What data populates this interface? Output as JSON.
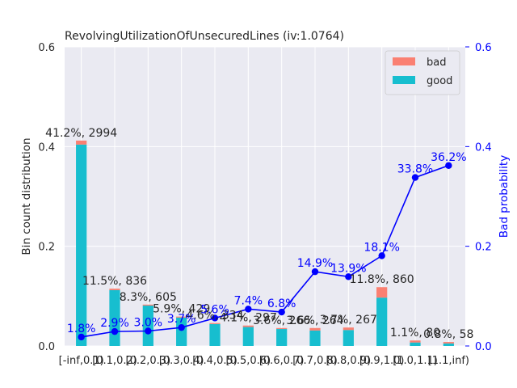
{
  "chart_data": {
    "type": "bar",
    "title": "RevolvingUtilizationOfUnsecuredLines  (iv:1.0764)",
    "ylabel": "Bin count distribution",
    "ylabel_right": "Bad probability",
    "categories": [
      "[-inf,0.1)",
      "[0.1,0.2)",
      "[0.2,0.3)",
      "[0.3,0.4)",
      "[0.4,0.5)",
      "[0.5,0.6)",
      "[0.6,0.7)",
      "[0.7,0.8)",
      "[0.8,0.9)",
      "[0.9,1.0)",
      "[1.0,1.1)",
      "[1.1,inf)"
    ],
    "ylim": [
      0,
      0.6
    ],
    "ylim_right": [
      0,
      0.6
    ],
    "yticks": [
      "0.0",
      "0.2",
      "0.4",
      "0.6"
    ],
    "yticks_right": [
      "0.0",
      "0.2",
      "0.4",
      "0.6"
    ],
    "series": [
      {
        "name": "good",
        "color": "#17becf",
        "values": [
          0.404,
          0.112,
          0.081,
          0.057,
          0.044,
          0.038,
          0.034,
          0.031,
          0.032,
          0.097,
          0.007,
          0.005
        ]
      },
      {
        "name": "bad",
        "color": "#fa8072",
        "values": [
          0.008,
          0.003,
          0.002,
          0.002,
          0.002,
          0.003,
          0.002,
          0.005,
          0.005,
          0.021,
          0.004,
          0.003
        ]
      }
    ],
    "line": {
      "name": "Bad probability",
      "color": "#0000ff",
      "values": [
        0.018,
        0.029,
        0.03,
        0.037,
        0.056,
        0.074,
        0.068,
        0.149,
        0.139,
        0.181,
        0.338,
        0.362
      ]
    },
    "bar_labels": [
      "41.2%, 2994",
      "11.5%, 836",
      "8.3%, 605",
      "5.9%, 429",
      "4.6%, 334",
      "4.1%, 297",
      "3.6%, 266",
      "3.6%, 264",
      "3.7%, 267",
      "11.8%, 860",
      "1.1%, 80",
      "0.8%, 58"
    ],
    "line_labels": [
      "1.8%",
      "2.9%",
      "3.0%",
      "3.7%",
      "5.6%",
      "7.4%",
      "6.8%",
      "14.9%",
      "13.9%",
      "18.1%",
      "33.8%",
      "36.2%"
    ],
    "legend": [
      "bad",
      "good"
    ],
    "legend_position": "top-right",
    "grid": true,
    "colors": {
      "background": "#eaeaf2",
      "grid": "#ffffff",
      "right_axis": "#0000ff",
      "text": "#262626"
    }
  }
}
